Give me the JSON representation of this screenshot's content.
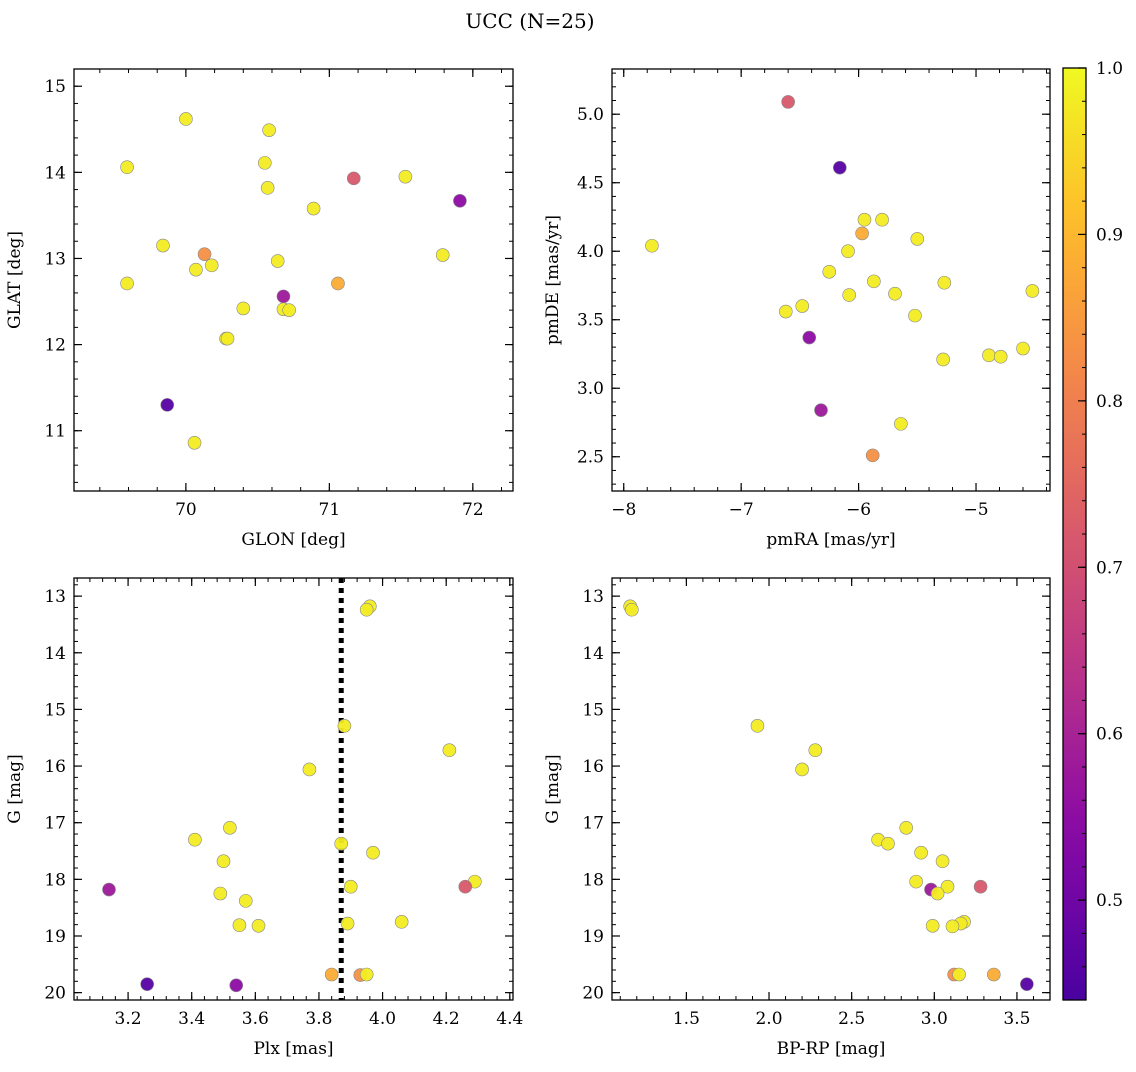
{
  "figure": {
    "title": "UCC (N=25)"
  },
  "colorbar": {
    "min": 0.44,
    "max": 1.0,
    "ticks": [
      0.5,
      0.6,
      0.7,
      0.8,
      0.9,
      1.0
    ],
    "tick_labels": [
      "0.5",
      "0.6",
      "0.7",
      "0.8",
      "0.9",
      "1.0"
    ],
    "colormap": "plasma"
  },
  "chart_data": [
    {
      "id": "glon-glat",
      "type": "scatter",
      "title": "",
      "xlabel": "GLON [deg]",
      "ylabel": "GLAT [deg]",
      "xlim": [
        69.22,
        72.28
      ],
      "ylim": [
        10.3,
        15.2
      ],
      "y_inverted": false,
      "xticks": [
        70,
        71,
        72
      ],
      "xtick_labels": [
        "70",
        "71",
        "72"
      ],
      "yticks": [
        11,
        12,
        13,
        14,
        15
      ],
      "ytick_labels": [
        "11",
        "12",
        "13",
        "14",
        "15"
      ],
      "points": [
        {
          "x": 70.0,
          "y": 14.62,
          "c": 0.98
        },
        {
          "x": 69.59,
          "y": 14.06,
          "c": 0.98
        },
        {
          "x": 70.58,
          "y": 14.49,
          "c": 0.98
        },
        {
          "x": 70.55,
          "y": 14.11,
          "c": 0.98
        },
        {
          "x": 70.57,
          "y": 13.82,
          "c": 0.98
        },
        {
          "x": 71.17,
          "y": 13.93,
          "c": 0.72
        },
        {
          "x": 71.53,
          "y": 13.95,
          "c": 0.98
        },
        {
          "x": 71.91,
          "y": 13.67,
          "c": 0.55
        },
        {
          "x": 70.89,
          "y": 13.58,
          "c": 0.98
        },
        {
          "x": 69.84,
          "y": 13.15,
          "c": 0.98
        },
        {
          "x": 70.13,
          "y": 13.05,
          "c": 0.83
        },
        {
          "x": 70.07,
          "y": 12.87,
          "c": 0.98
        },
        {
          "x": 70.18,
          "y": 12.92,
          "c": 0.98
        },
        {
          "x": 70.64,
          "y": 12.97,
          "c": 0.98
        },
        {
          "x": 71.79,
          "y": 13.04,
          "c": 0.98
        },
        {
          "x": 71.06,
          "y": 12.71,
          "c": 0.88
        },
        {
          "x": 69.59,
          "y": 12.71,
          "c": 0.98
        },
        {
          "x": 70.68,
          "y": 12.56,
          "c": 0.58
        },
        {
          "x": 70.4,
          "y": 12.42,
          "c": 0.98
        },
        {
          "x": 70.68,
          "y": 12.41,
          "c": 0.98
        },
        {
          "x": 70.72,
          "y": 12.4,
          "c": 0.98
        },
        {
          "x": 70.28,
          "y": 12.07,
          "c": 0.98
        },
        {
          "x": 70.29,
          "y": 12.07,
          "c": 0.98
        },
        {
          "x": 69.87,
          "y": 11.3,
          "c": 0.46
        },
        {
          "x": 70.06,
          "y": 10.86,
          "c": 0.98
        }
      ]
    },
    {
      "id": "pmra-pmde",
      "type": "scatter",
      "title": "",
      "xlabel": "pmRA [mas/yr]",
      "ylabel": "pmDE [mas/yr]",
      "xlim": [
        -8.1,
        -4.37
      ],
      "ylim": [
        2.25,
        5.33
      ],
      "y_inverted": false,
      "xticks": [
        -8,
        -7,
        -6,
        -5
      ],
      "xtick_labels": [
        "−8",
        "−7",
        "−6",
        "−5"
      ],
      "yticks": [
        2.5,
        3.0,
        3.5,
        4.0,
        4.5,
        5.0
      ],
      "ytick_labels": [
        "2.5",
        "3.0",
        "3.5",
        "4.0",
        "4.5",
        "5.0"
      ],
      "points": [
        {
          "x": -6.6,
          "y": 5.09,
          "c": 0.72
        },
        {
          "x": -6.16,
          "y": 4.61,
          "c": 0.46
        },
        {
          "x": -5.95,
          "y": 4.23,
          "c": 0.98
        },
        {
          "x": -5.8,
          "y": 4.23,
          "c": 0.98
        },
        {
          "x": -5.97,
          "y": 4.13,
          "c": 0.88
        },
        {
          "x": -7.76,
          "y": 4.04,
          "c": 0.98
        },
        {
          "x": -6.09,
          "y": 4.0,
          "c": 0.98
        },
        {
          "x": -5.5,
          "y": 4.09,
          "c": 0.98
        },
        {
          "x": -6.25,
          "y": 3.85,
          "c": 0.98
        },
        {
          "x": -5.87,
          "y": 3.78,
          "c": 0.98
        },
        {
          "x": -5.27,
          "y": 3.77,
          "c": 0.98
        },
        {
          "x": -6.08,
          "y": 3.68,
          "c": 0.98
        },
        {
          "x": -5.69,
          "y": 3.69,
          "c": 0.98
        },
        {
          "x": -4.52,
          "y": 3.71,
          "c": 0.98
        },
        {
          "x": -6.48,
          "y": 3.6,
          "c": 0.98
        },
        {
          "x": -6.62,
          "y": 3.56,
          "c": 0.98
        },
        {
          "x": -5.52,
          "y": 3.53,
          "c": 0.98
        },
        {
          "x": -6.42,
          "y": 3.37,
          "c": 0.55
        },
        {
          "x": -4.6,
          "y": 3.29,
          "c": 0.98
        },
        {
          "x": -4.89,
          "y": 3.24,
          "c": 0.98
        },
        {
          "x": -4.79,
          "y": 3.23,
          "c": 0.98
        },
        {
          "x": -5.28,
          "y": 3.21,
          "c": 0.98
        },
        {
          "x": -6.32,
          "y": 2.84,
          "c": 0.58
        },
        {
          "x": -5.64,
          "y": 2.74,
          "c": 0.98
        },
        {
          "x": -5.88,
          "y": 2.51,
          "c": 0.83
        }
      ]
    },
    {
      "id": "plx-g",
      "type": "scatter",
      "title": "",
      "xlabel": "Plx [mas]",
      "ylabel": "G [mag]",
      "xlim": [
        3.03,
        4.41
      ],
      "ylim": [
        20.13,
        12.68
      ],
      "y_inverted": true,
      "xticks": [
        3.2,
        3.4,
        3.6,
        3.8,
        4.0,
        4.2,
        4.4
      ],
      "xtick_labels": [
        "3.2",
        "3.4",
        "3.6",
        "3.8",
        "4.0",
        "4.2",
        "4.4"
      ],
      "yticks": [
        13,
        14,
        15,
        16,
        17,
        18,
        19,
        20
      ],
      "ytick_labels": [
        "13",
        "14",
        "15",
        "16",
        "17",
        "18",
        "19",
        "20"
      ],
      "reference_line": {
        "x": 3.87,
        "style": "dotted"
      },
      "points": [
        {
          "x": 3.96,
          "y": 13.18,
          "c": 0.98
        },
        {
          "x": 3.95,
          "y": 13.24,
          "c": 0.98
        },
        {
          "x": 3.88,
          "y": 15.29,
          "c": 0.98
        },
        {
          "x": 4.21,
          "y": 15.72,
          "c": 0.98
        },
        {
          "x": 3.77,
          "y": 16.06,
          "c": 0.98
        },
        {
          "x": 3.52,
          "y": 17.09,
          "c": 0.98
        },
        {
          "x": 3.41,
          "y": 17.3,
          "c": 0.98
        },
        {
          "x": 3.87,
          "y": 17.37,
          "c": 0.98
        },
        {
          "x": 3.97,
          "y": 17.53,
          "c": 0.98
        },
        {
          "x": 3.5,
          "y": 17.68,
          "c": 0.98
        },
        {
          "x": 4.29,
          "y": 18.04,
          "c": 0.98
        },
        {
          "x": 3.9,
          "y": 18.13,
          "c": 0.98
        },
        {
          "x": 4.26,
          "y": 18.13,
          "c": 0.72
        },
        {
          "x": 3.14,
          "y": 18.18,
          "c": 0.58
        },
        {
          "x": 3.49,
          "y": 18.25,
          "c": 0.98
        },
        {
          "x": 3.57,
          "y": 18.38,
          "c": 0.98
        },
        {
          "x": 4.06,
          "y": 18.75,
          "c": 0.98
        },
        {
          "x": 3.89,
          "y": 18.78,
          "c": 0.98
        },
        {
          "x": 3.55,
          "y": 18.81,
          "c": 0.98
        },
        {
          "x": 3.61,
          "y": 18.82,
          "c": 0.98
        },
        {
          "x": 3.84,
          "y": 19.68,
          "c": 0.88
        },
        {
          "x": 3.93,
          "y": 19.69,
          "c": 0.83
        },
        {
          "x": 3.95,
          "y": 19.68,
          "c": 0.98
        },
        {
          "x": 3.26,
          "y": 19.85,
          "c": 0.46
        },
        {
          "x": 3.54,
          "y": 19.87,
          "c": 0.55
        }
      ]
    },
    {
      "id": "bprp-g",
      "type": "scatter",
      "title": "",
      "xlabel": "BP-RP [mag]",
      "ylabel": "G [mag]",
      "xlim": [
        1.05,
        3.7
      ],
      "ylim": [
        20.13,
        12.68
      ],
      "y_inverted": true,
      "xticks": [
        1.5,
        2.0,
        2.5,
        3.0,
        3.5
      ],
      "xtick_labels": [
        "1.5",
        "2.0",
        "2.5",
        "3.0",
        "3.5"
      ],
      "yticks": [
        13,
        14,
        15,
        16,
        17,
        18,
        19,
        20
      ],
      "ytick_labels": [
        "13",
        "14",
        "15",
        "16",
        "17",
        "18",
        "19",
        "20"
      ],
      "points": [
        {
          "x": 1.16,
          "y": 13.18,
          "c": 0.98
        },
        {
          "x": 1.17,
          "y": 13.24,
          "c": 0.98
        },
        {
          "x": 1.93,
          "y": 15.29,
          "c": 0.98
        },
        {
          "x": 2.28,
          "y": 15.72,
          "c": 0.98
        },
        {
          "x": 2.2,
          "y": 16.06,
          "c": 0.98
        },
        {
          "x": 2.83,
          "y": 17.09,
          "c": 0.98
        },
        {
          "x": 2.66,
          "y": 17.3,
          "c": 0.98
        },
        {
          "x": 2.72,
          "y": 17.37,
          "c": 0.98
        },
        {
          "x": 2.92,
          "y": 17.53,
          "c": 0.98
        },
        {
          "x": 3.05,
          "y": 17.68,
          "c": 0.98
        },
        {
          "x": 2.89,
          "y": 18.04,
          "c": 0.98
        },
        {
          "x": 3.08,
          "y": 18.13,
          "c": 0.98
        },
        {
          "x": 3.28,
          "y": 18.13,
          "c": 0.72
        },
        {
          "x": 2.98,
          "y": 18.18,
          "c": 0.58
        },
        {
          "x": 3.02,
          "y": 18.25,
          "c": 0.98
        },
        {
          "x": 3.18,
          "y": 18.75,
          "c": 0.98
        },
        {
          "x": 3.16,
          "y": 18.78,
          "c": 0.98
        },
        {
          "x": 2.99,
          "y": 18.82,
          "c": 0.98
        },
        {
          "x": 3.11,
          "y": 18.83,
          "c": 0.98
        },
        {
          "x": 3.12,
          "y": 19.68,
          "c": 0.83
        },
        {
          "x": 3.15,
          "y": 19.68,
          "c": 0.98
        },
        {
          "x": 3.36,
          "y": 19.68,
          "c": 0.88
        },
        {
          "x": 3.56,
          "y": 19.85,
          "c": 0.46
        }
      ]
    }
  ]
}
